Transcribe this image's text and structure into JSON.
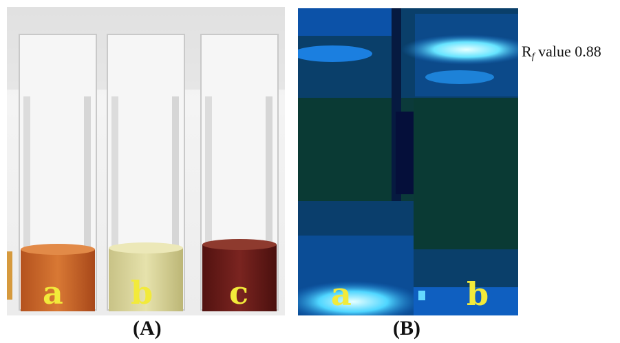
{
  "panels": {
    "a": {
      "caption": "(A)",
      "tubes": [
        {
          "label": "a",
          "liquid_color": "#c8682a"
        },
        {
          "label": "b",
          "liquid_color": "#d8d49a"
        },
        {
          "label": "c",
          "liquid_color": "#6a1a16"
        }
      ]
    },
    "b": {
      "caption": "(B)",
      "lanes": [
        {
          "label": "a"
        },
        {
          "label": "b"
        }
      ],
      "rf_label": {
        "prefix": "R",
        "subscript": "f",
        "text": " value 0.88"
      }
    }
  },
  "colors": {
    "tube_letter": "#f2ea3a",
    "plate_background": "#0b3a3a",
    "plate_glow": "#39c8ff"
  }
}
